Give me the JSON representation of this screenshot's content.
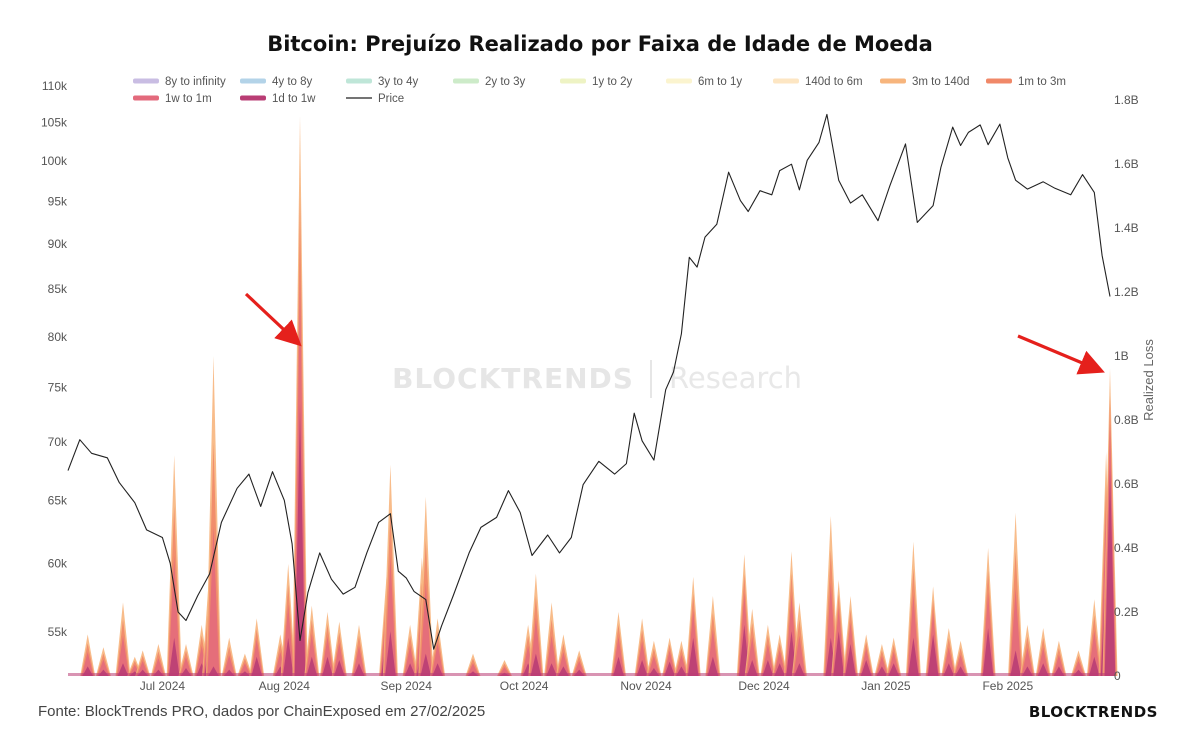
{
  "header": {
    "title": "Bitcoin: Prejuízo Realizado por Faixa de Idade de Moeda"
  },
  "footer": {
    "source": "Fonte: BlockTrends PRO, dados por ChainExposed em 27/02/2025",
    "brand": "BLOCKTRENDS"
  },
  "watermark": {
    "left": "BLOCKTRENDS",
    "right": "Research"
  },
  "chart_data": {
    "type": "area",
    "y_right_label": "Realized Loss",
    "legend_position": "top-left",
    "grid": false,
    "x_ticks": [
      {
        "label": "Jul 2024",
        "date": "2024-07-01"
      },
      {
        "label": "Aug 2024",
        "date": "2024-08-01"
      },
      {
        "label": "Sep 2024",
        "date": "2024-09-01"
      },
      {
        "label": "Oct 2024",
        "date": "2024-10-01"
      },
      {
        "label": "Nov 2024",
        "date": "2024-11-01"
      },
      {
        "label": "Dec 2024",
        "date": "2024-12-01"
      },
      {
        "label": "Jan 2025",
        "date": "2025-01-01"
      },
      {
        "label": "Feb 2025",
        "date": "2025-02-01"
      }
    ],
    "x_range": [
      "2024-06-07",
      "2025-02-27"
    ],
    "y_left": {
      "scale": "log",
      "range": [
        52000,
        110000
      ],
      "ticks": [
        {
          "label": "55k",
          "value": 55000
        },
        {
          "label": "60k",
          "value": 60000
        },
        {
          "label": "65k",
          "value": 65000
        },
        {
          "label": "70k",
          "value": 70000
        },
        {
          "label": "75k",
          "value": 75000
        },
        {
          "label": "80k",
          "value": 80000
        },
        {
          "label": "85k",
          "value": 85000
        },
        {
          "label": "90k",
          "value": 90000
        },
        {
          "label": "95k",
          "value": 95000
        },
        {
          "label": "100k",
          "value": 100000
        },
        {
          "label": "105k",
          "value": 105000
        },
        {
          "label": "110k",
          "value": 110000
        }
      ]
    },
    "y_right": {
      "scale": "linear",
      "range": [
        0,
        1800000000
      ],
      "ticks": [
        {
          "label": "0",
          "value": 0
        },
        {
          "label": "0.2B",
          "value": 200000000
        },
        {
          "label": "0.4B",
          "value": 400000000
        },
        {
          "label": "0.6B",
          "value": 600000000
        },
        {
          "label": "0.8B",
          "value": 800000000
        },
        {
          "label": "1B",
          "value": 1000000000
        },
        {
          "label": "1.2B",
          "value": 1200000000
        },
        {
          "label": "1.4B",
          "value": 1400000000
        },
        {
          "label": "1.6B",
          "value": 1600000000
        },
        {
          "label": "1.8B",
          "value": 1800000000
        }
      ]
    },
    "legend": [
      {
        "name": "8y to infinity",
        "color": "#c9bde3"
      },
      {
        "name": "4y to 8y",
        "color": "#b3d3e8"
      },
      {
        "name": "3y to 4y",
        "color": "#bfe6d8"
      },
      {
        "name": "2y to 3y",
        "color": "#cdebc9"
      },
      {
        "name": "1y to 2y",
        "color": "#eef3c4"
      },
      {
        "name": "6m to 1y",
        "color": "#fbf4cf"
      },
      {
        "name": "140d to 6m",
        "color": "#fde6c3"
      },
      {
        "name": "3m to 140d",
        "color": "#f7b57d"
      },
      {
        "name": "1m to 3m",
        "color": "#f08868"
      },
      {
        "name": "1w to 1m",
        "color": "#e36a7c"
      },
      {
        "name": "1d to 1w",
        "color": "#b93d74"
      },
      {
        "name": "Price",
        "color": "#222222"
      }
    ],
    "price_series": [
      [
        "2024-06-07",
        67500
      ],
      [
        "2024-06-10",
        70200
      ],
      [
        "2024-06-13",
        69000
      ],
      [
        "2024-06-17",
        68600
      ],
      [
        "2024-06-20",
        66500
      ],
      [
        "2024-06-24",
        64800
      ],
      [
        "2024-06-27",
        62600
      ],
      [
        "2024-07-01",
        62000
      ],
      [
        "2024-07-03",
        60000
      ],
      [
        "2024-07-05",
        56400
      ],
      [
        "2024-07-07",
        55800
      ],
      [
        "2024-07-10",
        57600
      ],
      [
        "2024-07-13",
        59200
      ],
      [
        "2024-07-16",
        63200
      ],
      [
        "2024-07-20",
        66000
      ],
      [
        "2024-07-23",
        67200
      ],
      [
        "2024-07-26",
        64500
      ],
      [
        "2024-07-29",
        67400
      ],
      [
        "2024-08-01",
        65000
      ],
      [
        "2024-08-03",
        61500
      ],
      [
        "2024-08-05",
        54400
      ],
      [
        "2024-08-07",
        57800
      ],
      [
        "2024-08-10",
        60800
      ],
      [
        "2024-08-13",
        58800
      ],
      [
        "2024-08-16",
        57700
      ],
      [
        "2024-08-19",
        58200
      ],
      [
        "2024-08-22",
        60800
      ],
      [
        "2024-08-25",
        63200
      ],
      [
        "2024-08-28",
        63900
      ],
      [
        "2024-08-30",
        59400
      ],
      [
        "2024-09-01",
        58900
      ],
      [
        "2024-09-03",
        57900
      ],
      [
        "2024-09-06",
        57300
      ],
      [
        "2024-09-08",
        53800
      ],
      [
        "2024-09-10",
        55400
      ],
      [
        "2024-09-13",
        57600
      ],
      [
        "2024-09-17",
        60800
      ],
      [
        "2024-09-20",
        62800
      ],
      [
        "2024-09-24",
        63600
      ],
      [
        "2024-09-27",
        65800
      ],
      [
        "2024-09-30",
        64000
      ],
      [
        "2024-10-03",
        60600
      ],
      [
        "2024-10-07",
        62200
      ],
      [
        "2024-10-10",
        60800
      ],
      [
        "2024-10-13",
        62000
      ],
      [
        "2024-10-16",
        66300
      ],
      [
        "2024-10-20",
        68300
      ],
      [
        "2024-10-24",
        67200
      ],
      [
        "2024-10-27",
        68100
      ],
      [
        "2024-10-29",
        72600
      ],
      [
        "2024-10-31",
        70100
      ],
      [
        "2024-11-03",
        68400
      ],
      [
        "2024-11-06",
        74800
      ],
      [
        "2024-11-08",
        76500
      ],
      [
        "2024-11-10",
        80300
      ],
      [
        "2024-11-12",
        88500
      ],
      [
        "2024-11-14",
        87400
      ],
      [
        "2024-11-16",
        90800
      ],
      [
        "2024-11-19",
        92300
      ],
      [
        "2024-11-22",
        98600
      ],
      [
        "2024-11-25",
        95100
      ],
      [
        "2024-11-27",
        93800
      ],
      [
        "2024-11-30",
        96300
      ],
      [
        "2024-12-03",
        95800
      ],
      [
        "2024-12-05",
        98800
      ],
      [
        "2024-12-08",
        99600
      ],
      [
        "2024-12-10",
        96400
      ],
      [
        "2024-12-12",
        100100
      ],
      [
        "2024-12-15",
        102400
      ],
      [
        "2024-12-17",
        106100
      ],
      [
        "2024-12-20",
        97600
      ],
      [
        "2024-12-23",
        94800
      ],
      [
        "2024-12-26",
        95800
      ],
      [
        "2024-12-30",
        92700
      ],
      [
        "2025-01-02",
        96900
      ],
      [
        "2025-01-06",
        102200
      ],
      [
        "2025-01-09",
        92500
      ],
      [
        "2025-01-13",
        94500
      ],
      [
        "2025-01-15",
        99200
      ],
      [
        "2025-01-18",
        104400
      ],
      [
        "2025-01-20",
        102000
      ],
      [
        "2025-01-22",
        103700
      ],
      [
        "2025-01-25",
        104700
      ],
      [
        "2025-01-27",
        102100
      ],
      [
        "2025-01-30",
        104800
      ],
      [
        "2025-02-01",
        100400
      ],
      [
        "2025-02-03",
        97600
      ],
      [
        "2025-02-06",
        96500
      ],
      [
        "2025-02-10",
        97400
      ],
      [
        "2025-02-13",
        96600
      ],
      [
        "2025-02-17",
        95800
      ],
      [
        "2025-02-20",
        98300
      ],
      [
        "2025-02-23",
        96100
      ],
      [
        "2025-02-25",
        88700
      ],
      [
        "2025-02-27",
        84200
      ]
    ],
    "loss_spikes": [
      [
        "2024-06-12",
        30000000,
        130000000
      ],
      [
        "2024-06-16",
        20000000,
        90000000
      ],
      [
        "2024-06-21",
        40000000,
        230000000
      ],
      [
        "2024-06-24",
        15000000,
        60000000
      ],
      [
        "2024-06-26",
        20000000,
        80000000
      ],
      [
        "2024-06-30",
        20000000,
        100000000
      ],
      [
        "2024-07-04",
        120000000,
        690000000
      ],
      [
        "2024-07-07",
        25000000,
        100000000
      ],
      [
        "2024-07-11",
        40000000,
        160000000
      ],
      [
        "2024-07-13",
        110000000,
        340000000
      ],
      [
        "2024-07-14",
        30000000,
        1000000000
      ],
      [
        "2024-07-18",
        20000000,
        120000000
      ],
      [
        "2024-07-22",
        15000000,
        70000000
      ],
      [
        "2024-07-25",
        60000000,
        180000000
      ],
      [
        "2024-07-31",
        30000000,
        130000000
      ],
      [
        "2024-08-02",
        120000000,
        350000000
      ],
      [
        "2024-08-05",
        850000000,
        1750000000
      ],
      [
        "2024-08-08",
        60000000,
        220000000
      ],
      [
        "2024-08-12",
        60000000,
        200000000
      ],
      [
        "2024-08-15",
        50000000,
        170000000
      ],
      [
        "2024-08-20",
        40000000,
        160000000
      ],
      [
        "2024-08-27",
        140000000,
        310000000
      ],
      [
        "2024-08-28",
        140000000,
        660000000
      ],
      [
        "2024-09-02",
        40000000,
        160000000
      ],
      [
        "2024-09-05",
        90000000,
        370000000
      ],
      [
        "2024-09-06",
        70000000,
        560000000
      ],
      [
        "2024-09-09",
        40000000,
        180000000
      ],
      [
        "2024-09-18",
        15000000,
        70000000
      ],
      [
        "2024-09-26",
        10000000,
        50000000
      ],
      [
        "2024-10-02",
        40000000,
        160000000
      ],
      [
        "2024-10-04",
        70000000,
        320000000
      ],
      [
        "2024-10-08",
        40000000,
        230000000
      ],
      [
        "2024-10-11",
        30000000,
        130000000
      ],
      [
        "2024-10-15",
        20000000,
        80000000
      ],
      [
        "2024-10-25",
        60000000,
        200000000
      ],
      [
        "2024-10-31",
        50000000,
        180000000
      ],
      [
        "2024-11-03",
        25000000,
        110000000
      ],
      [
        "2024-11-07",
        45000000,
        120000000
      ],
      [
        "2024-11-10",
        30000000,
        110000000
      ],
      [
        "2024-11-13",
        120000000,
        310000000
      ],
      [
        "2024-11-18",
        60000000,
        250000000
      ],
      [
        "2024-11-26",
        160000000,
        380000000
      ],
      [
        "2024-11-28",
        50000000,
        210000000
      ],
      [
        "2024-12-02",
        50000000,
        160000000
      ],
      [
        "2024-12-05",
        40000000,
        130000000
      ],
      [
        "2024-12-08",
        140000000,
        390000000
      ],
      [
        "2024-12-10",
        40000000,
        230000000
      ],
      [
        "2024-12-18",
        120000000,
        500000000
      ],
      [
        "2024-12-20",
        140000000,
        300000000
      ],
      [
        "2024-12-23",
        100000000,
        250000000
      ],
      [
        "2024-12-27",
        50000000,
        130000000
      ],
      [
        "2024-12-31",
        30000000,
        100000000
      ],
      [
        "2025-01-03",
        40000000,
        120000000
      ],
      [
        "2025-01-08",
        120000000,
        420000000
      ],
      [
        "2025-01-13",
        130000000,
        280000000
      ],
      [
        "2025-01-17",
        40000000,
        150000000
      ],
      [
        "2025-01-20",
        30000000,
        110000000
      ],
      [
        "2025-01-27",
        150000000,
        400000000
      ],
      [
        "2025-02-03",
        80000000,
        510000000
      ],
      [
        "2025-02-06",
        30000000,
        160000000
      ],
      [
        "2025-02-10",
        40000000,
        150000000
      ],
      [
        "2025-02-14",
        30000000,
        110000000
      ],
      [
        "2025-02-19",
        20000000,
        80000000
      ],
      [
        "2025-02-23",
        60000000,
        240000000
      ],
      [
        "2025-02-26",
        350000000,
        700000000
      ],
      [
        "2025-02-27",
        650000000,
        960000000
      ]
    ]
  }
}
